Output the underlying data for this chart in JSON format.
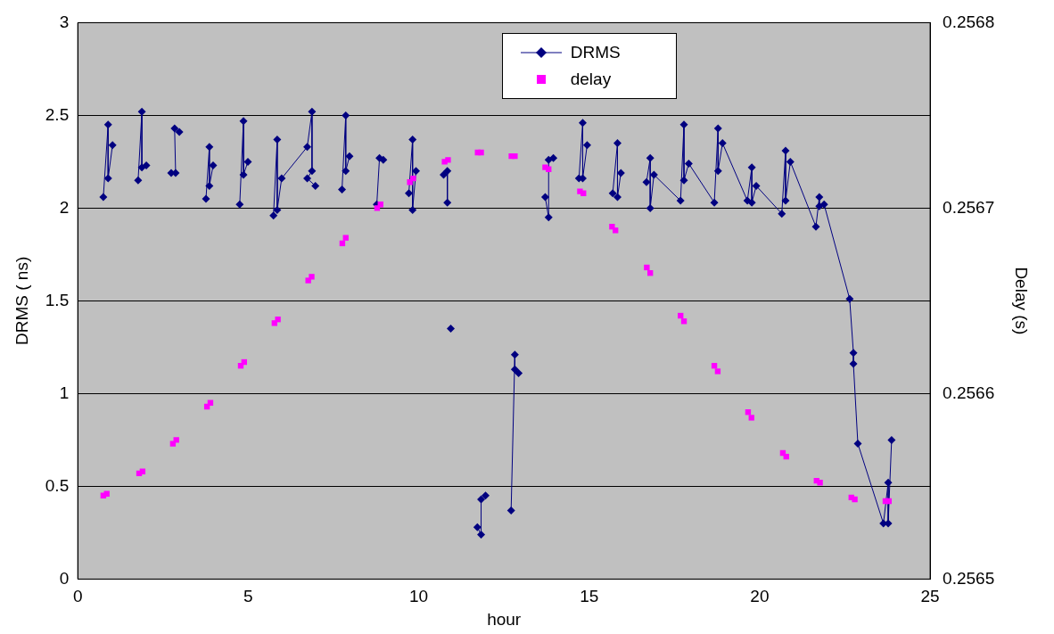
{
  "chart_data": {
    "type": "line",
    "xlabel": "hour",
    "ylabel": "DRMS ( ns)",
    "y2label": "Delay (s)",
    "xlim": [
      0,
      25
    ],
    "xticks": [
      0,
      5,
      10,
      15,
      20,
      25
    ],
    "ylim": [
      0,
      3
    ],
    "yticks": [
      0,
      0.5,
      1,
      1.5,
      2,
      2.5,
      3
    ],
    "y2lim": [
      0.2565,
      0.2568
    ],
    "y2ticks": [
      0.2565,
      0.2566,
      0.2567,
      0.2568
    ],
    "grid": "y",
    "legend": "top",
    "series": [
      {
        "name": "DRMS",
        "type": "line",
        "color": "#000080",
        "marker": "diamond",
        "axis": "y",
        "x": [
          0.75,
          0.89,
          0.89,
          1.02,
          1.4,
          1.77,
          1.88,
          1.88,
          2.01,
          2.4,
          2.74,
          2.87,
          2.84,
          2.98,
          3.4,
          3.76,
          3.86,
          3.86,
          3.97,
          4.4,
          4.75,
          4.86,
          4.86,
          4.99,
          5.4,
          5.74,
          5.85,
          5.85,
          5.98,
          6.73,
          6.87,
          6.87,
          6.73,
          6.97,
          7.4,
          7.75,
          7.86,
          7.86,
          7.97,
          8.4,
          8.77,
          8.85,
          8.96,
          9.4,
          9.71,
          9.82,
          9.82,
          9.92,
          10.3,
          10.73,
          10.84,
          10.84,
          10.9,
          10.94,
          11.3,
          11.72,
          11.83,
          11.83,
          11.96,
          12.3,
          12.71,
          12.82,
          12.82,
          12.93,
          13.3,
          13.71,
          13.81,
          13.81,
          13.95,
          14.3,
          14.7,
          14.81,
          14.81,
          14.94,
          15.3,
          15.69,
          15.83,
          15.83,
          15.93,
          16.3,
          16.68,
          16.79,
          16.79,
          16.9,
          17.68,
          17.78,
          17.78,
          17.92,
          18.67,
          18.78,
          18.78,
          18.91,
          19.64,
          19.77,
          19.77,
          19.9,
          20.65,
          20.76,
          20.76,
          20.9,
          21.65,
          21.75,
          21.75,
          21.89,
          22.64,
          22.75,
          22.75,
          22.88,
          23.63,
          23.77,
          23.77,
          23.87
        ],
        "values": [
          2.06,
          2.45,
          2.16,
          2.34,
          null,
          2.15,
          2.52,
          2.22,
          2.23,
          null,
          2.19,
          2.19,
          2.43,
          2.41,
          null,
          2.05,
          2.33,
          2.12,
          2.23,
          null,
          2.02,
          2.47,
          2.18,
          2.25,
          null,
          1.96,
          2.37,
          1.99,
          2.16,
          2.33,
          2.52,
          2.2,
          2.16,
          2.12,
          null,
          2.1,
          2.5,
          2.2,
          2.28,
          null,
          2.02,
          2.27,
          2.26,
          null,
          2.08,
          2.37,
          1.99,
          2.2,
          null,
          2.18,
          2.2,
          2.03,
          null,
          1.35,
          null,
          0.28,
          0.24,
          0.43,
          0.45,
          null,
          0.37,
          1.21,
          1.13,
          1.11,
          null,
          2.06,
          1.95,
          2.26,
          2.27,
          null,
          2.16,
          2.46,
          2.16,
          2.34,
          null,
          2.08,
          2.35,
          2.06,
          2.19,
          null,
          2.14,
          2.27,
          2,
          2.18,
          2.04,
          2.45,
          2.15,
          2.24,
          2.03,
          2.43,
          2.2,
          2.35,
          2.04,
          2.22,
          2.03,
          2.12,
          1.97,
          2.31,
          2.04,
          2.25,
          1.9,
          2.06,
          2.01,
          2.02,
          1.51,
          1.22,
          1.16,
          0.73,
          0.3,
          0.52,
          0.3,
          0.75
        ]
      },
      {
        "name": "delay",
        "type": "scatter",
        "color": "#ff00ff",
        "marker": "square",
        "axis": "y2",
        "x": [
          0.75,
          0.85,
          1.8,
          1.9,
          2.79,
          2.89,
          3.79,
          3.89,
          4.78,
          4.88,
          5.77,
          5.87,
          6.76,
          6.86,
          7.76,
          7.86,
          8.78,
          8.88,
          9.74,
          9.84,
          10.76,
          10.86,
          11.73,
          11.83,
          12.72,
          12.82,
          13.71,
          13.81,
          14.73,
          14.83,
          15.67,
          15.77,
          16.69,
          16.79,
          17.68,
          17.78,
          18.67,
          18.77,
          19.66,
          19.76,
          20.68,
          20.78,
          21.67,
          21.77,
          22.69,
          22.79,
          23.69,
          23.79
        ],
        "values": [
          0.256545,
          0.256546,
          0.256557,
          0.256558,
          0.256573,
          0.256575,
          0.256593,
          0.256595,
          0.256615,
          0.256617,
          0.256638,
          0.25664,
          0.256661,
          0.256663,
          0.256681,
          0.256684,
          0.2567,
          0.256702,
          0.256714,
          0.256716,
          0.256725,
          0.256726,
          0.25673,
          0.25673,
          0.256728,
          0.256728,
          0.256722,
          0.256721,
          0.256709,
          0.256708,
          0.25669,
          0.256688,
          0.256668,
          0.256665,
          0.256642,
          0.256639,
          0.256615,
          0.256612,
          0.25659,
          0.256587,
          0.256568,
          0.256566,
          0.256553,
          0.256552,
          0.256544,
          0.256543,
          0.256542,
          0.256542
        ]
      }
    ]
  }
}
